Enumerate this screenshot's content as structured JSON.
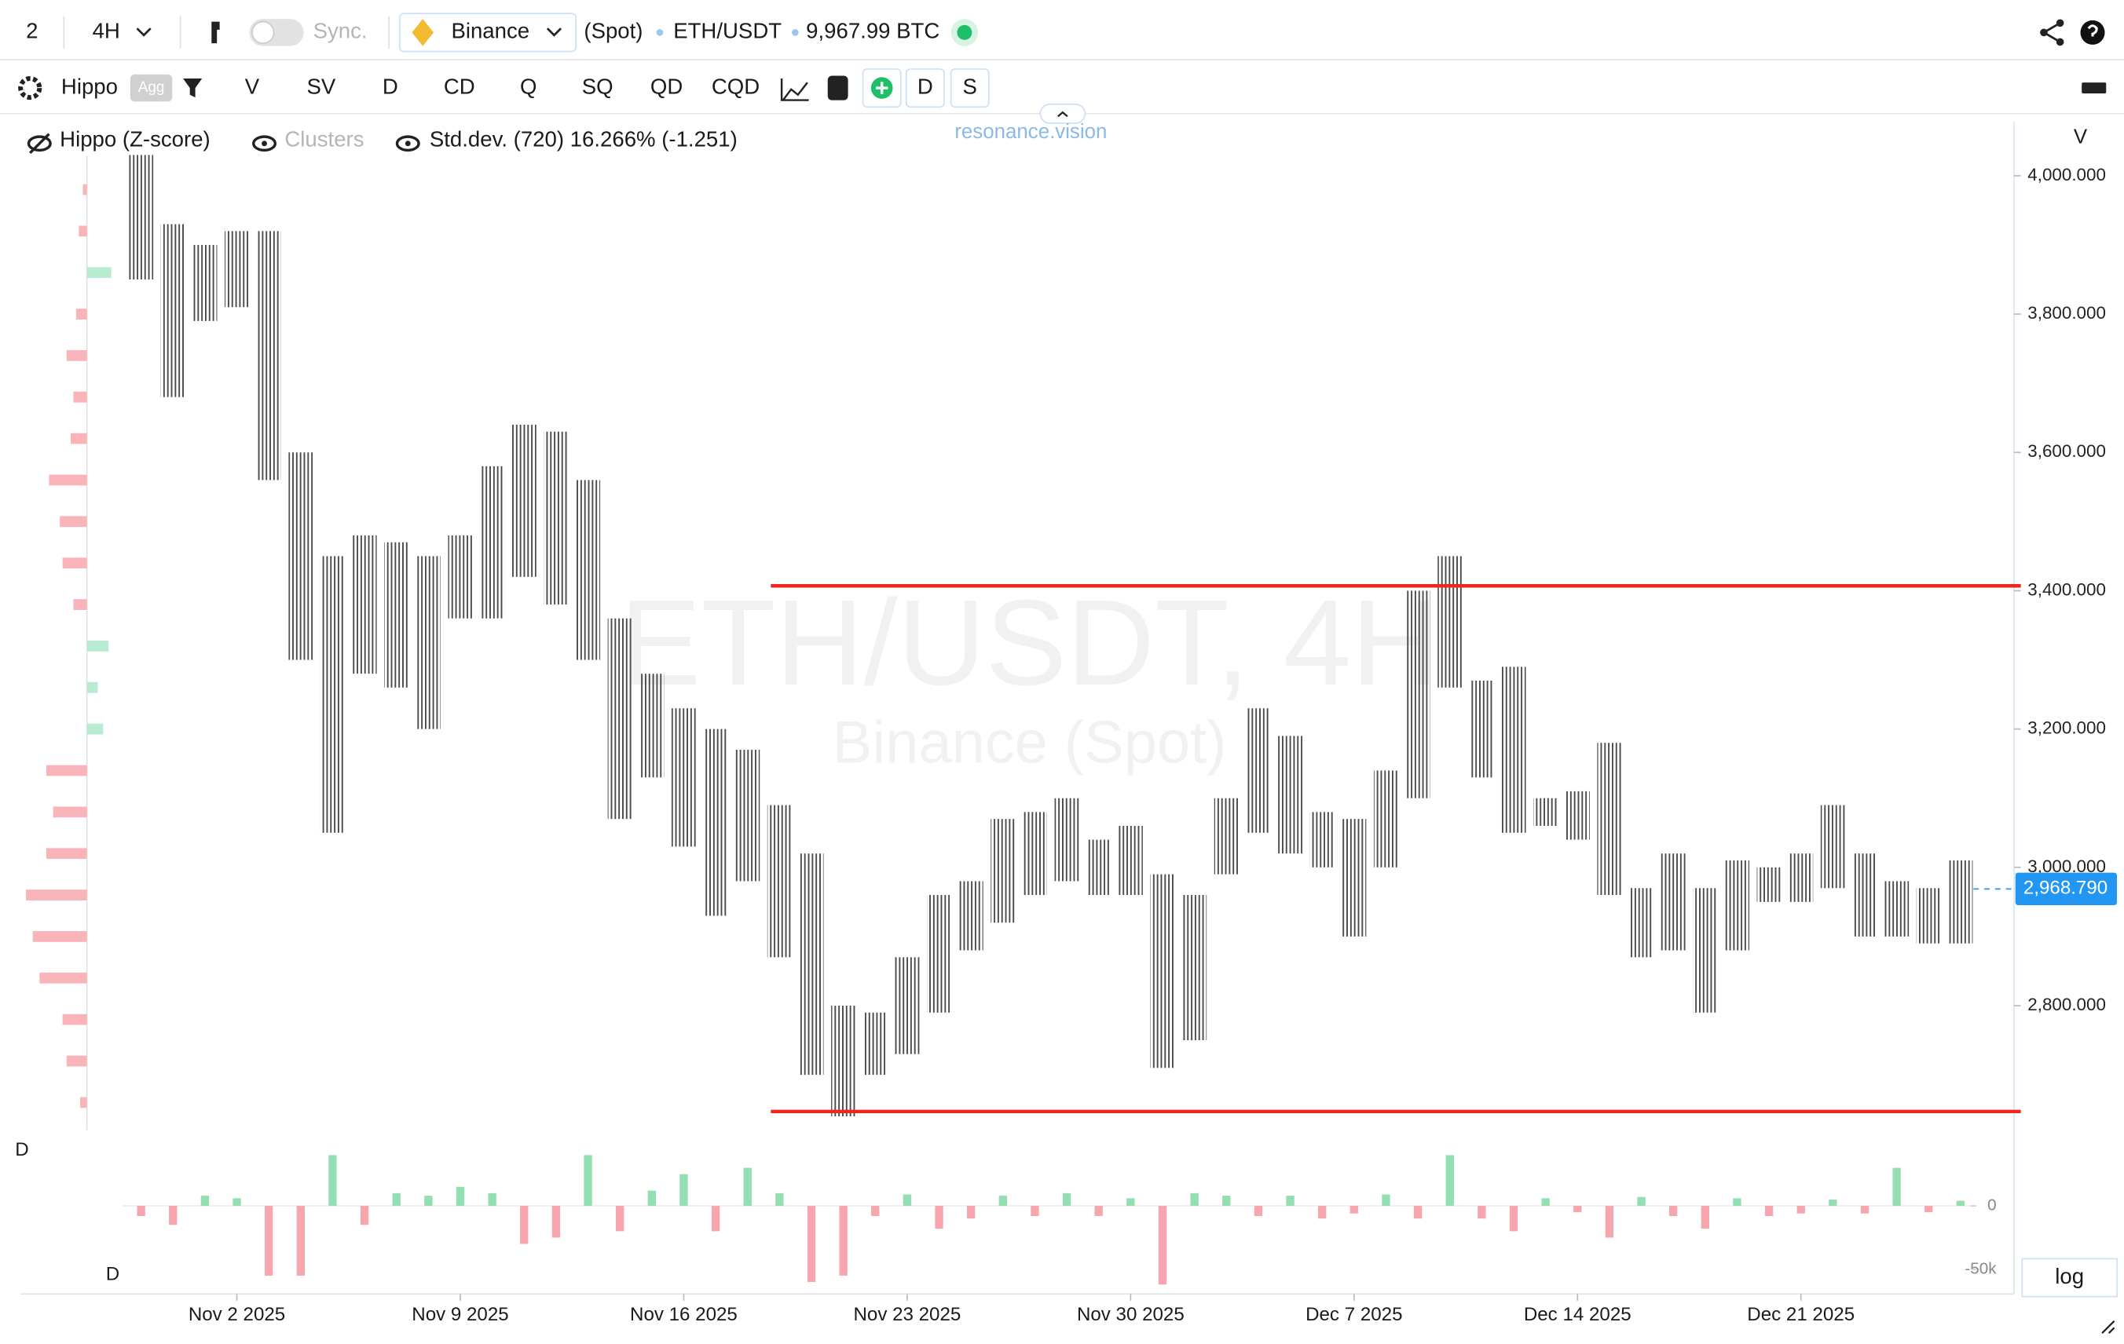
{
  "toolbar": {
    "layout": "2",
    "timeframe": "4H",
    "sync": "Sync.",
    "exchange": "Binance",
    "market": "(Spot)",
    "symbol": "ETH/USDT",
    "price": "9,967.99 BTC"
  },
  "indicator_bar": {
    "name": "Hippo",
    "badge": "Agg",
    "buttons": [
      "V",
      "SV",
      "D",
      "CD",
      "Q",
      "SQ",
      "QD",
      "CQD"
    ],
    "toggles": [
      "D",
      "S"
    ]
  },
  "legend": [
    "Hippo (Z-score)",
    "Clusters",
    "Std.dev. (720) 16.266% (-1.251)"
  ],
  "site": "resonance.vision",
  "price_axis_title": "V",
  "pane_labels": [
    "D",
    "D"
  ],
  "scale_mode": "log",
  "chart_data": [
    {
      "type": "range-bar",
      "title": "ETH/USDT, 4H",
      "subtitle": "Binance (Spot)",
      "color": "#555555",
      "categories": [
        "2025-10-30",
        "2025-10-31",
        "2025-11-01",
        "2025-11-02",
        "2025-11-03",
        "2025-11-04",
        "2025-11-05",
        "2025-11-06",
        "2025-11-07",
        "2025-11-08",
        "2025-11-09",
        "2025-11-10",
        "2025-11-11",
        "2025-11-12",
        "2025-11-13",
        "2025-11-14",
        "2025-11-15",
        "2025-11-16",
        "2025-11-17",
        "2025-11-18",
        "2025-11-19",
        "2025-11-20",
        "2025-11-21",
        "2025-11-22",
        "2025-11-23",
        "2025-11-24",
        "2025-11-25",
        "2025-11-26",
        "2025-11-27",
        "2025-11-28",
        "2025-11-29",
        "2025-11-30",
        "2025-12-01",
        "2025-12-02",
        "2025-12-03",
        "2025-12-04",
        "2025-12-05",
        "2025-12-06",
        "2025-12-07",
        "2025-12-08",
        "2025-12-09",
        "2025-12-10",
        "2025-12-11",
        "2025-12-12",
        "2025-12-13",
        "2025-12-14",
        "2025-12-15",
        "2025-12-16",
        "2025-12-17",
        "2025-12-18",
        "2025-12-19",
        "2025-12-20",
        "2025-12-21",
        "2025-12-22",
        "2025-12-23",
        "2025-12-24",
        "2025-12-25",
        "2025-12-26"
      ],
      "high": [
        4030,
        3930,
        3900,
        3920,
        3920,
        3600,
        3450,
        3480,
        3470,
        3450,
        3480,
        3580,
        3640,
        3630,
        3560,
        3360,
        3280,
        3230,
        3200,
        3170,
        3090,
        3020,
        2800,
        2790,
        2870,
        2960,
        2980,
        3070,
        3080,
        3100,
        3040,
        3060,
        2990,
        2960,
        3100,
        3230,
        3190,
        3080,
        3070,
        3140,
        3400,
        3450,
        3270,
        3290,
        3100,
        3110,
        3180,
        2970,
        3020,
        2970,
        3010,
        3000,
        3020,
        3090,
        3020,
        2980,
        2970,
        3010
      ],
      "low": [
        3850,
        3680,
        3790,
        3810,
        3560,
        3300,
        3050,
        3280,
        3260,
        3200,
        3360,
        3360,
        3420,
        3380,
        3300,
        3070,
        3130,
        3030,
        2930,
        2980,
        2870,
        2700,
        2640,
        2700,
        2730,
        2790,
        2880,
        2920,
        2960,
        2980,
        2960,
        2960,
        2710,
        2750,
        2990,
        3050,
        3020,
        3000,
        2900,
        3000,
        3100,
        3260,
        3130,
        3050,
        3060,
        3040,
        2960,
        2870,
        2880,
        2790,
        2880,
        2950,
        2950,
        2970,
        2900,
        2900,
        2890,
        2890
      ],
      "ylim": [
        2620,
        4078
      ],
      "yticks": [
        {
          "value": 2800,
          "label": "2,800.000"
        },
        {
          "value": 3000,
          "label": "3,000.000"
        },
        {
          "value": 3200,
          "label": "3,200.000"
        },
        {
          "value": 3400,
          "label": "3,400.000"
        },
        {
          "value": 3600,
          "label": "3,600.000"
        },
        {
          "value": 3800,
          "label": "3,800.000"
        },
        {
          "value": 4000,
          "label": "4,000.000"
        }
      ],
      "xticks": [
        {
          "value": "2025-11-02",
          "label": "Nov 2 2025"
        },
        {
          "value": "2025-11-09",
          "label": "Nov 9 2025"
        },
        {
          "value": "2025-11-16",
          "label": "Nov 16 2025"
        },
        {
          "value": "2025-11-23",
          "label": "Nov 23 2025"
        },
        {
          "value": "2025-11-30",
          "label": "Nov 30 2025"
        },
        {
          "value": "2025-12-07",
          "label": "Dec 7 2025"
        },
        {
          "value": "2025-12-14",
          "label": "Dec 14 2025"
        },
        {
          "value": "2025-12-21",
          "label": "Dec 21 2025"
        }
      ],
      "current_price": {
        "value": 2968.79,
        "label": "2,968.790"
      },
      "levels": [
        3407,
        2647
      ],
      "level_color": "#f0261e"
    },
    {
      "type": "delta-bar",
      "positive_color": "#93dfb2",
      "negative_color": "#f7a6ae",
      "values": [
        -8000,
        -15000,
        8000,
        6000,
        -55000,
        -55000,
        40000,
        -15000,
        10000,
        8000,
        15000,
        10000,
        -30000,
        -25000,
        40000,
        -20000,
        12000,
        25000,
        -20000,
        30000,
        10000,
        -60000,
        -55000,
        -8000,
        9000,
        -18000,
        -10000,
        8000,
        -8000,
        10000,
        -8000,
        6000,
        -62000,
        10000,
        8000,
        -8000,
        8000,
        -10000,
        -6000,
        9000,
        -10000,
        40000,
        -10000,
        -20000,
        6000,
        -5000,
        -25000,
        7000,
        -8000,
        -18000,
        6000,
        -8000,
        -6000,
        5000,
        -6000,
        30000,
        -5000,
        4000
      ],
      "ylim": [
        -63000,
        49000
      ],
      "yticks": [
        {
          "value": -50000,
          "label": "-50k"
        },
        0
      ]
    },
    {
      "type": "profile",
      "positive_color": "#b8ecd0",
      "negative_color": "#f9b4ba",
      "categories": [
        2660,
        2720,
        2780,
        2840,
        2900,
        2960,
        3020,
        3080,
        3140,
        3200,
        3260,
        3320,
        3380,
        3440,
        3500,
        3560,
        3620,
        3680,
        3740,
        3800,
        3860,
        3920,
        3980
      ],
      "values": [
        -5,
        -15,
        -18,
        -35,
        -40,
        -45,
        -30,
        -25,
        -30,
        12,
        8,
        16,
        -10,
        -18,
        -20,
        -28,
        -12,
        -10,
        -15,
        -8,
        18,
        -6,
        -3
      ]
    }
  ]
}
